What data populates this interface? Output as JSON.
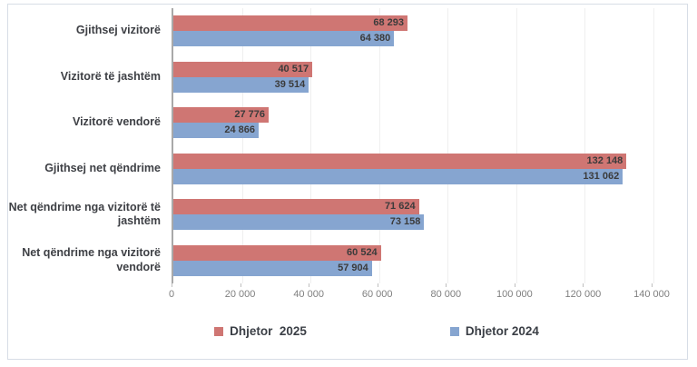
{
  "chart_data": {
    "type": "bar",
    "orientation": "horizontal",
    "title": "",
    "categories": [
      "Gjithsej vizitorë",
      "Vizitorë të jashtëm",
      "Vizitorë vendorë",
      "Gjithsej net qëndrime",
      "Net qëndrime nga vizitorë të jashtëm",
      "Net qëndrime nga vizitorë vendorë"
    ],
    "series": [
      {
        "name": "Dhjetor  2025",
        "color": "#cf7673",
        "values": [
          68293,
          40517,
          27776,
          132148,
          71624,
          60524
        ],
        "value_labels": [
          "68 293",
          "40 517",
          "27 776",
          "132 148",
          "71 624",
          "60 524"
        ]
      },
      {
        "name": "Dhjetor 2024",
        "color": "#86a5d0",
        "values": [
          64380,
          39514,
          24866,
          131062,
          73158,
          57904
        ],
        "value_labels": [
          "64 380",
          "39 514",
          "24 866",
          "131 062",
          "73 158",
          "57 904"
        ]
      }
    ],
    "xlim": [
      0,
      140000
    ],
    "x_tick_values": [
      0,
      20000,
      40000,
      60000,
      80000,
      100000,
      120000,
      140000
    ],
    "x_ticks": [
      "0",
      "20 000",
      "40 000",
      "60 000",
      "80 000",
      "100 000",
      "120 000",
      "140 000"
    ],
    "grid": true,
    "legend_position": "bottom",
    "colors": {
      "bar_2025": "#cf7673",
      "bar_2024": "#86a5d0",
      "value_label_text": "#3b3b3b",
      "category_label_text": "#3e4045",
      "axis_text": "#7f7f7f",
      "gridline": "#efefef",
      "axis_line": "#a9a9a9",
      "chart_border": "#d7dde6"
    }
  }
}
